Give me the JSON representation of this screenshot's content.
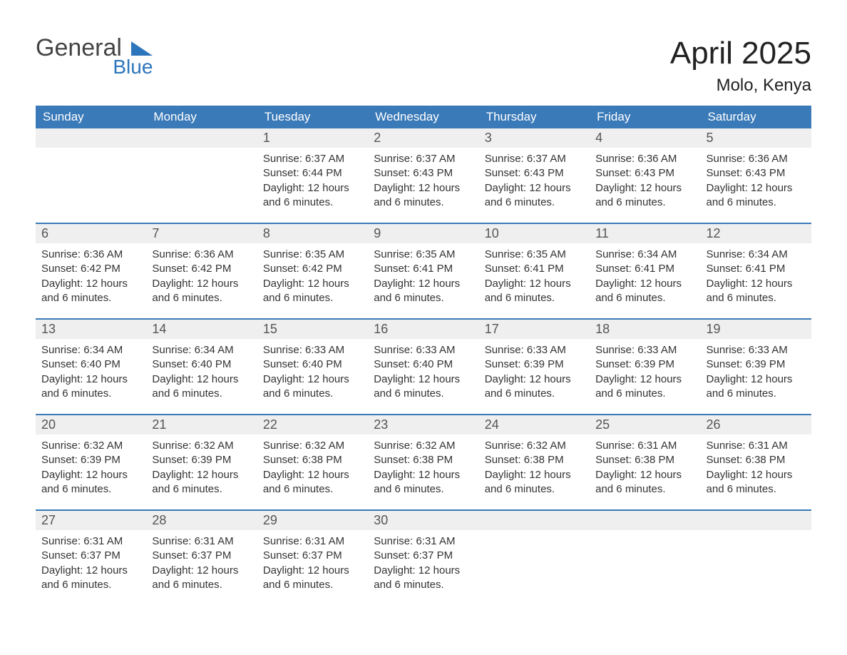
{
  "brand": {
    "name_part1": "General",
    "name_part2": "Blue",
    "text_color": "#444444",
    "accent_color": "#2d76bb"
  },
  "header": {
    "month_title": "April 2025",
    "location": "Molo, Kenya"
  },
  "colors": {
    "header_bg": "#3a7ab8",
    "header_text": "#ffffff",
    "daynum_bg": "#efefef",
    "week_border": "#3a7ab8",
    "body_text": "#333333",
    "background": "#ffffff"
  },
  "weekdays": [
    "Sunday",
    "Monday",
    "Tuesday",
    "Wednesday",
    "Thursday",
    "Friday",
    "Saturday"
  ],
  "weeks": [
    [
      {
        "day": null
      },
      {
        "day": null
      },
      {
        "day": "1",
        "sunrise": "Sunrise: 6:37 AM",
        "sunset": "Sunset: 6:44 PM",
        "daylight": "Daylight: 12 hours and 6 minutes."
      },
      {
        "day": "2",
        "sunrise": "Sunrise: 6:37 AM",
        "sunset": "Sunset: 6:43 PM",
        "daylight": "Daylight: 12 hours and 6 minutes."
      },
      {
        "day": "3",
        "sunrise": "Sunrise: 6:37 AM",
        "sunset": "Sunset: 6:43 PM",
        "daylight": "Daylight: 12 hours and 6 minutes."
      },
      {
        "day": "4",
        "sunrise": "Sunrise: 6:36 AM",
        "sunset": "Sunset: 6:43 PM",
        "daylight": "Daylight: 12 hours and 6 minutes."
      },
      {
        "day": "5",
        "sunrise": "Sunrise: 6:36 AM",
        "sunset": "Sunset: 6:43 PM",
        "daylight": "Daylight: 12 hours and 6 minutes."
      }
    ],
    [
      {
        "day": "6",
        "sunrise": "Sunrise: 6:36 AM",
        "sunset": "Sunset: 6:42 PM",
        "daylight": "Daylight: 12 hours and 6 minutes."
      },
      {
        "day": "7",
        "sunrise": "Sunrise: 6:36 AM",
        "sunset": "Sunset: 6:42 PM",
        "daylight": "Daylight: 12 hours and 6 minutes."
      },
      {
        "day": "8",
        "sunrise": "Sunrise: 6:35 AM",
        "sunset": "Sunset: 6:42 PM",
        "daylight": "Daylight: 12 hours and 6 minutes."
      },
      {
        "day": "9",
        "sunrise": "Sunrise: 6:35 AM",
        "sunset": "Sunset: 6:41 PM",
        "daylight": "Daylight: 12 hours and 6 minutes."
      },
      {
        "day": "10",
        "sunrise": "Sunrise: 6:35 AM",
        "sunset": "Sunset: 6:41 PM",
        "daylight": "Daylight: 12 hours and 6 minutes."
      },
      {
        "day": "11",
        "sunrise": "Sunrise: 6:34 AM",
        "sunset": "Sunset: 6:41 PM",
        "daylight": "Daylight: 12 hours and 6 minutes."
      },
      {
        "day": "12",
        "sunrise": "Sunrise: 6:34 AM",
        "sunset": "Sunset: 6:41 PM",
        "daylight": "Daylight: 12 hours and 6 minutes."
      }
    ],
    [
      {
        "day": "13",
        "sunrise": "Sunrise: 6:34 AM",
        "sunset": "Sunset: 6:40 PM",
        "daylight": "Daylight: 12 hours and 6 minutes."
      },
      {
        "day": "14",
        "sunrise": "Sunrise: 6:34 AM",
        "sunset": "Sunset: 6:40 PM",
        "daylight": "Daylight: 12 hours and 6 minutes."
      },
      {
        "day": "15",
        "sunrise": "Sunrise: 6:33 AM",
        "sunset": "Sunset: 6:40 PM",
        "daylight": "Daylight: 12 hours and 6 minutes."
      },
      {
        "day": "16",
        "sunrise": "Sunrise: 6:33 AM",
        "sunset": "Sunset: 6:40 PM",
        "daylight": "Daylight: 12 hours and 6 minutes."
      },
      {
        "day": "17",
        "sunrise": "Sunrise: 6:33 AM",
        "sunset": "Sunset: 6:39 PM",
        "daylight": "Daylight: 12 hours and 6 minutes."
      },
      {
        "day": "18",
        "sunrise": "Sunrise: 6:33 AM",
        "sunset": "Sunset: 6:39 PM",
        "daylight": "Daylight: 12 hours and 6 minutes."
      },
      {
        "day": "19",
        "sunrise": "Sunrise: 6:33 AM",
        "sunset": "Sunset: 6:39 PM",
        "daylight": "Daylight: 12 hours and 6 minutes."
      }
    ],
    [
      {
        "day": "20",
        "sunrise": "Sunrise: 6:32 AM",
        "sunset": "Sunset: 6:39 PM",
        "daylight": "Daylight: 12 hours and 6 minutes."
      },
      {
        "day": "21",
        "sunrise": "Sunrise: 6:32 AM",
        "sunset": "Sunset: 6:39 PM",
        "daylight": "Daylight: 12 hours and 6 minutes."
      },
      {
        "day": "22",
        "sunrise": "Sunrise: 6:32 AM",
        "sunset": "Sunset: 6:38 PM",
        "daylight": "Daylight: 12 hours and 6 minutes."
      },
      {
        "day": "23",
        "sunrise": "Sunrise: 6:32 AM",
        "sunset": "Sunset: 6:38 PM",
        "daylight": "Daylight: 12 hours and 6 minutes."
      },
      {
        "day": "24",
        "sunrise": "Sunrise: 6:32 AM",
        "sunset": "Sunset: 6:38 PM",
        "daylight": "Daylight: 12 hours and 6 minutes."
      },
      {
        "day": "25",
        "sunrise": "Sunrise: 6:31 AM",
        "sunset": "Sunset: 6:38 PM",
        "daylight": "Daylight: 12 hours and 6 minutes."
      },
      {
        "day": "26",
        "sunrise": "Sunrise: 6:31 AM",
        "sunset": "Sunset: 6:38 PM",
        "daylight": "Daylight: 12 hours and 6 minutes."
      }
    ],
    [
      {
        "day": "27",
        "sunrise": "Sunrise: 6:31 AM",
        "sunset": "Sunset: 6:37 PM",
        "daylight": "Daylight: 12 hours and 6 minutes."
      },
      {
        "day": "28",
        "sunrise": "Sunrise: 6:31 AM",
        "sunset": "Sunset: 6:37 PM",
        "daylight": "Daylight: 12 hours and 6 minutes."
      },
      {
        "day": "29",
        "sunrise": "Sunrise: 6:31 AM",
        "sunset": "Sunset: 6:37 PM",
        "daylight": "Daylight: 12 hours and 6 minutes."
      },
      {
        "day": "30",
        "sunrise": "Sunrise: 6:31 AM",
        "sunset": "Sunset: 6:37 PM",
        "daylight": "Daylight: 12 hours and 6 minutes."
      },
      {
        "day": null
      },
      {
        "day": null
      },
      {
        "day": null
      }
    ]
  ]
}
